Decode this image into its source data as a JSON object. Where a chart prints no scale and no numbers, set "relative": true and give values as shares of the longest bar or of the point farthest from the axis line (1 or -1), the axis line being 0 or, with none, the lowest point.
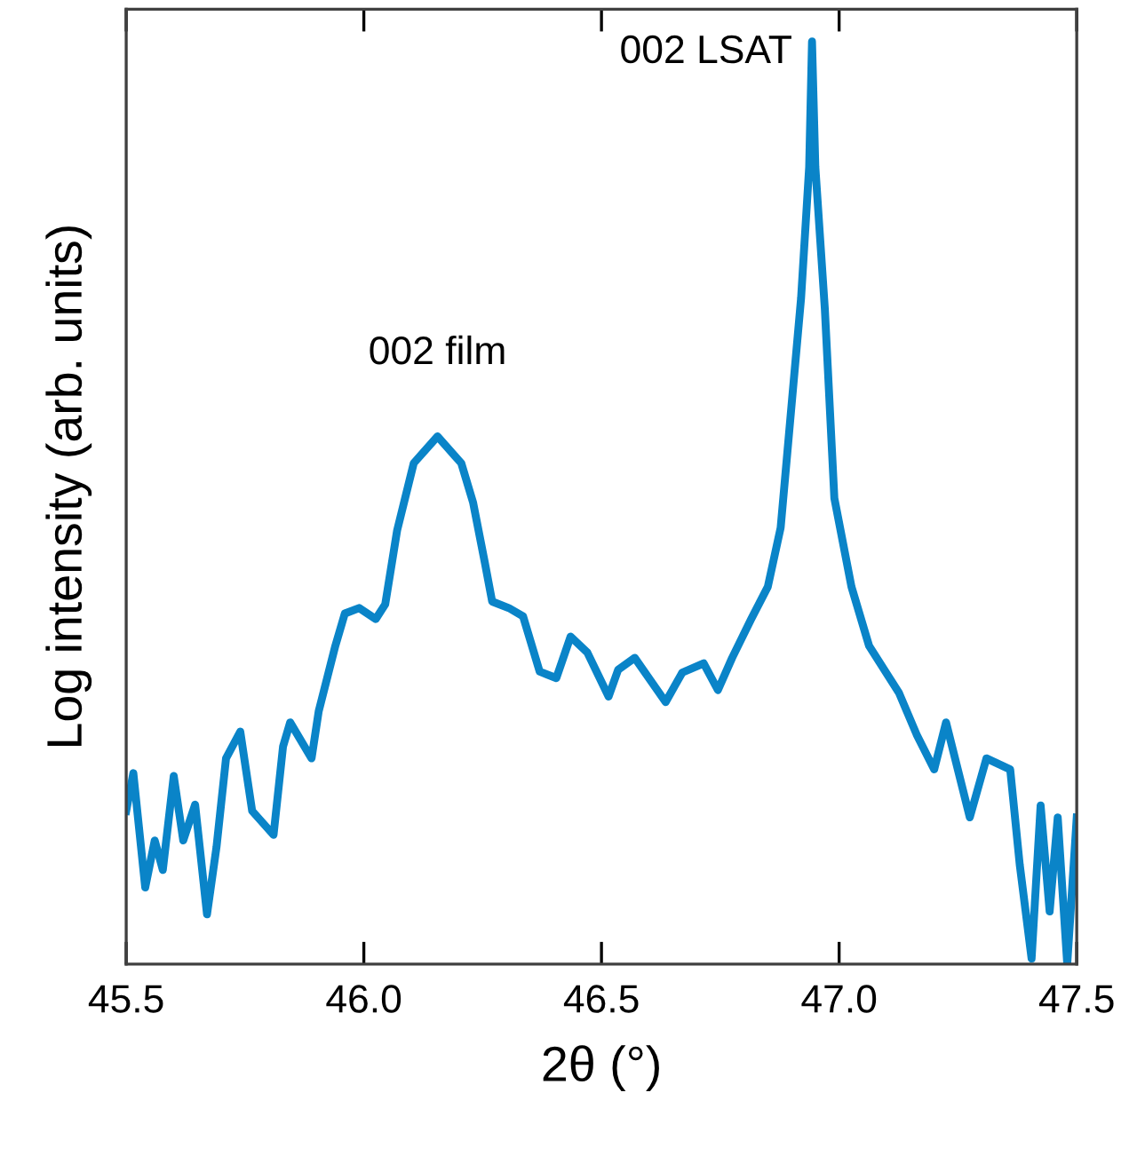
{
  "chart_data": {
    "type": "line",
    "xlabel": "2θ (°)",
    "ylabel": "Log intensity (arb. units)",
    "relative": true,
    "tick_labels": "x",
    "grid": false,
    "marker": "none",
    "line_style": "solid",
    "xlim": [
      45.5,
      47.5
    ],
    "xticks": [
      {
        "value": 45.5,
        "label": "45.5"
      },
      {
        "value": 46.0,
        "label": "46.0"
      },
      {
        "value": 46.5,
        "label": "46.5"
      },
      {
        "value": 47.0,
        "label": "47.0"
      },
      {
        "value": 47.5,
        "label": "47.5"
      }
    ],
    "annotations": [
      {
        "text": "002 film",
        "x": 46.155,
        "y": 0.572
      },
      {
        "text": "002 LSAT",
        "x": 46.943,
        "y": 1
      }
    ],
    "series": [
      {
        "color": "#0a84c8",
        "x": [
          45.5,
          45.515,
          45.54,
          45.56,
          45.577,
          45.6,
          45.62,
          45.645,
          45.67,
          45.69,
          45.71,
          45.74,
          45.765,
          45.81,
          45.83,
          45.845,
          45.89,
          45.905,
          45.94,
          45.96,
          45.99,
          46.025,
          46.045,
          46.07,
          46.105,
          46.155,
          46.205,
          46.23,
          46.255,
          46.27,
          46.305,
          46.335,
          46.37,
          46.405,
          46.435,
          46.47,
          46.515,
          46.535,
          46.57,
          46.635,
          46.67,
          46.715,
          46.745,
          46.775,
          46.815,
          46.85,
          46.877,
          46.92,
          46.937,
          46.943,
          46.95,
          46.97,
          46.99,
          47.026,
          47.063,
          47.126,
          47.163,
          47.2,
          47.225,
          47.275,
          47.31,
          47.36,
          47.38,
          47.405,
          47.424,
          47.443,
          47.46,
          47.48,
          47.5
        ],
        "values": [
          0.166,
          0.207,
          0.083,
          0.134,
          0.102,
          0.204,
          0.134,
          0.173,
          0.054,
          0.127,
          0.223,
          0.252,
          0.166,
          0.14,
          0.236,
          0.262,
          0.223,
          0.274,
          0.345,
          0.38,
          0.386,
          0.374,
          0.39,
          0.47,
          0.543,
          0.572,
          0.543,
          0.5,
          0.434,
          0.393,
          0.386,
          0.377,
          0.317,
          0.31,
          0.355,
          0.338,
          0.29,
          0.319,
          0.332,
          0.284,
          0.316,
          0.326,
          0.297,
          0.332,
          0.374,
          0.409,
          0.473,
          0.722,
          0.864,
          1,
          0.864,
          0.71,
          0.505,
          0.409,
          0.345,
          0.294,
          0.249,
          0.211,
          0.262,
          0.159,
          0.223,
          0.211,
          0.108,
          0.006,
          0.172,
          0.057,
          0.159,
          0,
          0.159
        ]
      }
    ]
  }
}
